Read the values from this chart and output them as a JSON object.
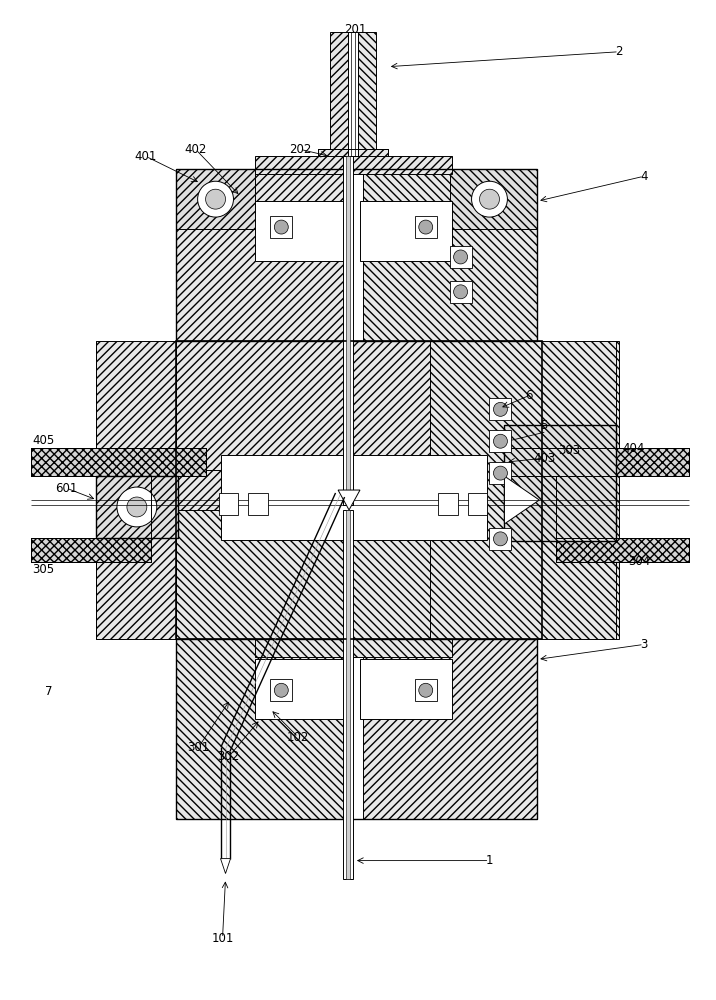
{
  "fig_width": 7.16,
  "fig_height": 10.0,
  "dpi": 100,
  "bg_color": "#ffffff",
  "lw": 0.7
}
